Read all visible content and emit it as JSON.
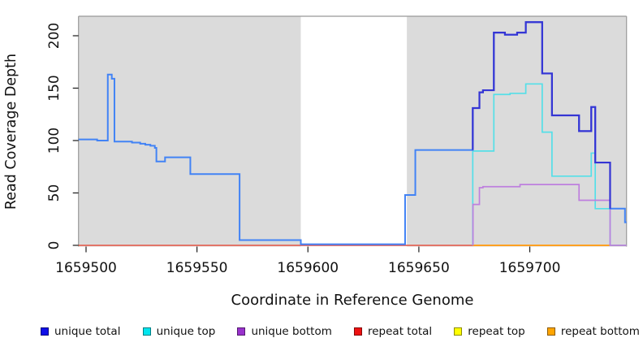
{
  "chart_data": {
    "type": "step-line",
    "title": "",
    "xlabel": "Coordinate in Reference Genome",
    "ylabel": "Read Coverage Depth",
    "x_range": [
      1659496.6,
      1659743.6
    ],
    "y_range": [
      -1.2,
      218.6
    ],
    "x_ticks": [
      1659500,
      1659550,
      1659600,
      1659650,
      1659700
    ],
    "y_ticks": [
      0,
      50,
      100,
      150,
      200
    ],
    "grid": false,
    "panel_color": "#DBDBDB",
    "border_color": "#999999",
    "tick_color": "#1A1A1A",
    "no_data_gap": {
      "x0": 1659596.8,
      "x1": 1659644.6,
      "color": "#FFFFFF"
    },
    "legend_position": "bottom",
    "legend": [
      {
        "label": "unique total",
        "color": "#0F0FE8"
      },
      {
        "label": "unique top",
        "color": "#00E5EE"
      },
      {
        "label": "unique bottom",
        "color": "#9932CC"
      },
      {
        "label": "repeat total",
        "color": "#EE1111"
      },
      {
        "label": "repeat top",
        "color": "#FFFF00"
      },
      {
        "label": "repeat bottom",
        "color": "#FFA500"
      }
    ],
    "series": [
      {
        "name": "repeat top",
        "color": "#F0F000",
        "width": 1.5,
        "points": [
          [
            1659496.6,
            0
          ],
          [
            1659743.6,
            0
          ]
        ]
      },
      {
        "name": "repeat total",
        "color": "#E25066",
        "width": 1.5,
        "points": [
          [
            1659496.6,
            0
          ],
          [
            1659743.6,
            0
          ]
        ]
      },
      {
        "name": "repeat bottom",
        "color": "#FFA01C",
        "width": 1.8,
        "points": [
          [
            1659674.4,
            0
          ],
          [
            1659736.2,
            0
          ]
        ]
      },
      {
        "name": "unique top",
        "color": "#55DFE8",
        "width": 1.7,
        "points": [
          [
            1659674.3,
            0
          ],
          [
            1659674.3,
            90
          ],
          [
            1659683.8,
            144
          ],
          [
            1659691.1,
            145
          ],
          [
            1659698.2,
            154
          ],
          [
            1659705.6,
            108
          ],
          [
            1659710,
            66
          ],
          [
            1659727.7,
            88
          ],
          [
            1659729.5,
            35
          ],
          [
            1659736.2,
            35
          ],
          [
            1659736.2,
            0
          ],
          [
            1659743.6,
            0
          ]
        ]
      },
      {
        "name": "unique bottom",
        "color": "#BE7FDE",
        "width": 1.7,
        "points": [
          [
            1659674.4,
            0
          ],
          [
            1659674.4,
            39
          ],
          [
            1659677.3,
            55
          ],
          [
            1659678.9,
            56
          ],
          [
            1659695.6,
            58
          ],
          [
            1659722.2,
            43
          ],
          [
            1659736.2,
            0
          ],
          [
            1659743.6,
            0
          ]
        ]
      },
      {
        "name": "total coverage",
        "color": "#4283F5",
        "width": 2.0,
        "points": [
          [
            1659496.6,
            101
          ],
          [
            1659505,
            100
          ],
          [
            1659509.8,
            163
          ],
          [
            1659511.6,
            159
          ],
          [
            1659512.8,
            99
          ],
          [
            1659520.7,
            98
          ],
          [
            1659524.4,
            97
          ],
          [
            1659526.7,
            96
          ],
          [
            1659529,
            95
          ],
          [
            1659531,
            93
          ],
          [
            1659531.7,
            80
          ],
          [
            1659535.6,
            84
          ],
          [
            1659547,
            68
          ],
          [
            1659569.2,
            5
          ],
          [
            1659596.8,
            1
          ],
          [
            1659643.8,
            48
          ],
          [
            1659648.4,
            91
          ],
          [
            1659674.3,
            131
          ],
          [
            1659677.3,
            146
          ],
          [
            1659678.9,
            148
          ],
          [
            1659683.8,
            203
          ],
          [
            1659688.8,
            201
          ],
          [
            1659694.3,
            203
          ],
          [
            1659698.2,
            213
          ],
          [
            1659705.6,
            164
          ],
          [
            1659710,
            124
          ],
          [
            1659722.2,
            109
          ],
          [
            1659727.7,
            132
          ],
          [
            1659729.5,
            79
          ],
          [
            1659736.2,
            35
          ],
          [
            1659742.9,
            22
          ],
          [
            1659743.6,
            22
          ]
        ]
      },
      {
        "name": "unique total",
        "color": "#3535D4",
        "width": 2.2,
        "points": [
          [
            1659674.3,
            91
          ],
          [
            1659674.3,
            131
          ],
          [
            1659677.3,
            146
          ],
          [
            1659678.9,
            148
          ],
          [
            1659683.8,
            203
          ],
          [
            1659688.8,
            201
          ],
          [
            1659694.3,
            203
          ],
          [
            1659698.2,
            213
          ],
          [
            1659705.6,
            164
          ],
          [
            1659710,
            124
          ],
          [
            1659722.2,
            109
          ],
          [
            1659727.7,
            132
          ],
          [
            1659729.5,
            79
          ],
          [
            1659736.2,
            79
          ],
          [
            1659736.2,
            35
          ]
        ]
      }
    ]
  }
}
